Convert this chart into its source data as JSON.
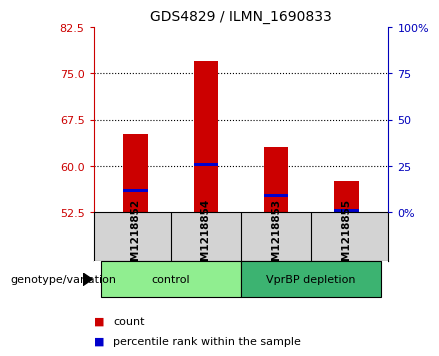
{
  "title": "GDS4829 / ILMN_1690833",
  "samples": [
    "GSM1218852",
    "GSM1218854",
    "GSM1218853",
    "GSM1218855"
  ],
  "red_values": [
    65.2,
    77.0,
    63.0,
    57.5
  ],
  "blue_values": [
    56.0,
    60.2,
    55.2,
    52.8
  ],
  "bar_bottom": 52.5,
  "ylim_left": [
    52.5,
    82.5
  ],
  "yticks_left": [
    52.5,
    60.0,
    67.5,
    75.0,
    82.5
  ],
  "ylim_right": [
    0,
    100
  ],
  "yticks_right": [
    0,
    25,
    50,
    75,
    100
  ],
  "ytick_labels_right": [
    "0%",
    "25",
    "50",
    "75",
    "100%"
  ],
  "groups": [
    {
      "label": "control",
      "indices": [
        0,
        1
      ],
      "color": "#90EE90"
    },
    {
      "label": "VprBP depletion",
      "indices": [
        2,
        3
      ],
      "color": "#3CB371"
    }
  ],
  "bar_color_red": "#CC0000",
  "bar_color_blue": "#0000CC",
  "bar_width": 0.35,
  "grid_color": "black",
  "background_color": "#ffffff",
  "left_tick_color": "#CC0000",
  "right_tick_color": "#0000BB",
  "legend_items": [
    {
      "color": "#CC0000",
      "label": "count"
    },
    {
      "color": "#0000CC",
      "label": "percentile rank within the sample"
    }
  ],
  "genotype_label": "genotype/variation",
  "sample_box_color": "#D3D3D3",
  "dotted_lines": [
    60.0,
    67.5,
    75.0
  ]
}
